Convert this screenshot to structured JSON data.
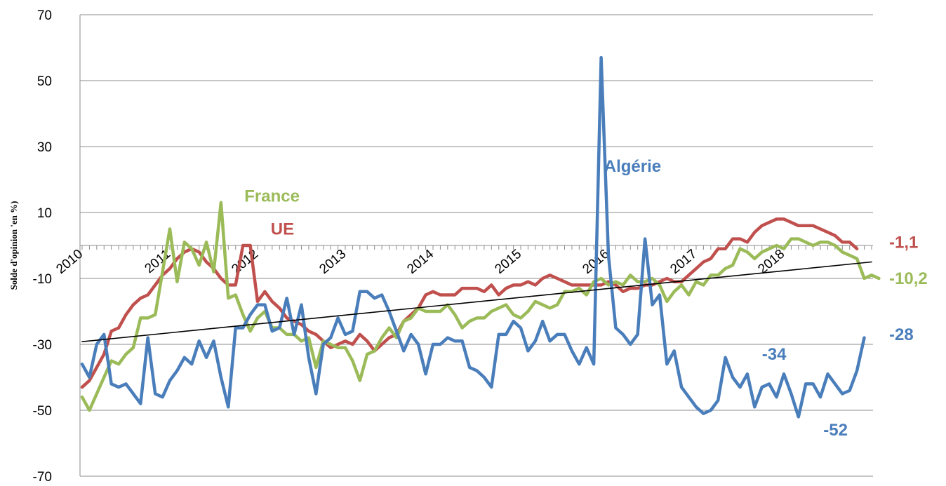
{
  "chart_data": {
    "type": "line",
    "ylabel": "Solde d'opinion 'en %)",
    "xlabel": "",
    "ylim": [
      -70,
      70
    ],
    "y_ticks": [
      "70",
      "50",
      "30",
      "10",
      "-10",
      "-30",
      "-50",
      "-70"
    ],
    "y_tick_values": [
      70,
      50,
      30,
      10,
      -10,
      -30,
      -50,
      -70
    ],
    "x_ticks": [
      "2010",
      "2011",
      "2012",
      "2013",
      "2014",
      "2015",
      "2016",
      "2017",
      "2018"
    ],
    "x_tick_values": [
      2010,
      2011,
      2012,
      2013,
      2014,
      2015,
      2016,
      2017,
      2018
    ],
    "xlim": [
      2010,
      2019
    ],
    "grid": true,
    "series": [
      {
        "name": "Algérie",
        "color": "#4a7ebb",
        "x_start": 2010.0,
        "x_step": 0.08333,
        "values": [
          -36,
          -40,
          -30,
          -27,
          -42,
          -43,
          -42,
          -45,
          -48,
          -28,
          -45,
          -46,
          -41,
          -38,
          -34,
          -36,
          -29,
          -34,
          -29,
          -40,
          -49,
          -25,
          -25,
          -21,
          -18,
          -18,
          -26,
          -25,
          -16,
          -27,
          -18,
          -34,
          -45,
          -30,
          -28,
          -22,
          -27,
          -26,
          -14,
          -14,
          -16,
          -15,
          -20,
          -26,
          -32,
          -27,
          -30,
          -39,
          -30,
          -30,
          -28,
          -29,
          -29,
          -37,
          -38,
          -40,
          -43,
          -27,
          -27,
          -23,
          -25,
          -32,
          -29,
          -23,
          -29,
          -27,
          -27,
          -32,
          -36,
          -31,
          -36,
          57,
          -3,
          -25,
          -27,
          -30,
          -27,
          2,
          -18,
          -15,
          -36,
          -32,
          -43,
          -46,
          -49,
          -51,
          -50,
          -47,
          -34,
          -40,
          -43,
          -39,
          -49,
          -43,
          -42,
          -46,
          -39,
          -45,
          -52,
          -42,
          -42,
          -46,
          -39,
          -42,
          -45,
          -44,
          -38,
          -28
        ],
        "end_label": "-28"
      },
      {
        "name": "UE",
        "color": "#c0504d",
        "x_start": 2010.0,
        "x_step": 0.08333,
        "values": [
          -43,
          -41,
          -37,
          -33,
          -26,
          -25,
          -21,
          -18,
          -16,
          -15,
          -12,
          -9,
          -7,
          -4,
          -2,
          -1,
          -2,
          -5,
          -7,
          -10,
          -12,
          -12,
          0,
          0,
          -17,
          -14,
          -17,
          -19,
          -22,
          -23,
          -24,
          -26,
          -27,
          -29,
          -31,
          -30,
          -29,
          -30,
          -27,
          -29,
          -32,
          -30,
          -28,
          -27,
          -23,
          -21,
          -19,
          -15,
          -14,
          -15,
          -15,
          -15,
          -13,
          -13,
          -13,
          -14,
          -12,
          -15,
          -13,
          -12,
          -12,
          -11,
          -12,
          -10,
          -9,
          -10,
          -11,
          -12,
          -12,
          -12,
          -12,
          -12,
          -11,
          -12,
          -14,
          -13,
          -13,
          -12,
          -12,
          -11,
          -10,
          -11,
          -11,
          -9,
          -7,
          -5,
          -4,
          -1,
          -1,
          2,
          2,
          1,
          4,
          6,
          7,
          8,
          8,
          7,
          6,
          6,
          6,
          5,
          4,
          3,
          1,
          1,
          -1
        ],
        "end_label": "-1,1"
      },
      {
        "name": "France",
        "color": "#9bbb59",
        "x_start": 2010.0,
        "x_step": 0.08333,
        "values": [
          -46,
          -50,
          -45,
          -40,
          -35,
          -36,
          -33,
          -31,
          -22,
          -22,
          -21,
          -8,
          5,
          -11,
          1,
          -1,
          -6,
          1,
          -8,
          13,
          -16,
          -15,
          -21,
          -26,
          -22,
          -20,
          -25,
          -25,
          -27,
          -27,
          -29,
          -28,
          -37,
          -29,
          -30,
          -31,
          -31,
          -35,
          -41,
          -33,
          -32,
          -28,
          -25,
          -28,
          -23,
          -22,
          -19,
          -20,
          -20,
          -20,
          -18,
          -21,
          -25,
          -23,
          -22,
          -22,
          -20,
          -19,
          -18,
          -21,
          -22,
          -20,
          -17,
          -18,
          -19,
          -18,
          -14,
          -14,
          -13,
          -15,
          -11,
          -10,
          -12,
          -11,
          -12,
          -9,
          -11,
          -11,
          -10,
          -12,
          -17,
          -14,
          -12,
          -15,
          -11,
          -12,
          -9,
          -9,
          -7,
          -6,
          -1,
          -2,
          -4,
          -2,
          -1,
          0,
          -1,
          2,
          2,
          1,
          0,
          1,
          1,
          0,
          -2,
          -3,
          -4,
          -10,
          -9,
          -10
        ],
        "end_label": "-10,2"
      },
      {
        "name": "Trend",
        "color": "#000000",
        "x": [
          2010.0,
          2019.0
        ],
        "values": [
          -29.2,
          -5.0
        ]
      }
    ],
    "annotations": [
      {
        "text": "Algérie",
        "color": "#4a7ebb",
        "x": 2015.95,
        "y": 24
      },
      {
        "text": "France",
        "color": "#9bbb59",
        "x": 2011.85,
        "y": 15
      },
      {
        "text": "UE",
        "color": "#c0504d",
        "x": 2012.15,
        "y": 5
      },
      {
        "text": "-34",
        "color": "#4a7ebb",
        "x": 2017.75,
        "y": -33
      },
      {
        "text": "-52",
        "color": "#4a7ebb",
        "x": 2018.45,
        "y": -56
      },
      {
        "text": "-1,1",
        "color": "#c0504d",
        "x": 2019.2,
        "y": 1
      },
      {
        "text": "-10,2",
        "color": "#9bbb59",
        "x": 2019.2,
        "y": -10
      },
      {
        "text": "-28",
        "color": "#4a7ebb",
        "x": 2019.2,
        "y": -27
      }
    ]
  }
}
